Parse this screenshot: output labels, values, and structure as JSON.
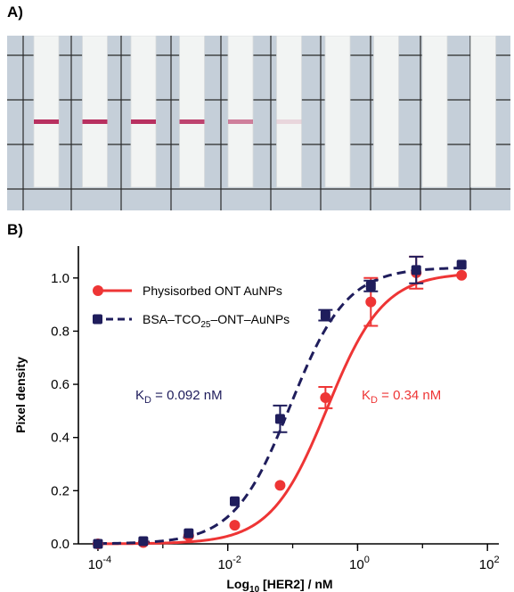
{
  "panel_a": {
    "label": "A)",
    "strip_count": 10,
    "band_intensity": [
      1.0,
      1.0,
      1.0,
      0.9,
      0.6,
      0.15,
      0,
      0,
      0,
      0
    ],
    "colors": {
      "background": "#c5cfd9",
      "strip": "#f2f4f3",
      "band": "#b83060",
      "grid": "#2a2a2a"
    }
  },
  "panel_b_label": "B)",
  "chart_data": {
    "type": "scatter",
    "xlabel_prefix": "Log",
    "xlabel_sub": "10",
    "xlabel_suffix": " [HER2] / nM",
    "ylabel": "Pixel density",
    "x_scale": "log",
    "xlim": [
      5e-05,
      150
    ],
    "ylim": [
      0,
      1.12
    ],
    "x_ticks": [
      {
        "value": 0.0001,
        "base": "10",
        "exp": "-4"
      },
      {
        "value": 0.01,
        "base": "10",
        "exp": "-2"
      },
      {
        "value": 1,
        "base": "10",
        "exp": "0"
      },
      {
        "value": 100,
        "base": "10",
        "exp": "2"
      }
    ],
    "y_ticks": [
      "0.0",
      "0.2",
      "0.4",
      "0.6",
      "0.8",
      "1.0"
    ],
    "y_tick_values": [
      0.0,
      0.2,
      0.4,
      0.6,
      0.8,
      1.0
    ],
    "grid": false,
    "legend_position": "top-left",
    "series": [
      {
        "name": "Physisorbed ONT AuNPs",
        "color": "#ee3535",
        "line_style": "solid",
        "marker": "circle",
        "kd": 0.34,
        "kd_label": {
          "prefix": "K",
          "sub": "D",
          "suffix": " = 0.34 nM"
        },
        "points": [
          {
            "x": 0.0001,
            "y": 0.0,
            "err": 0.0
          },
          {
            "x": 0.0005,
            "y": 0.005,
            "err": 0.0
          },
          {
            "x": 0.0025,
            "y": 0.03,
            "err": 0.0
          },
          {
            "x": 0.0128,
            "y": 0.07,
            "err": 0.0
          },
          {
            "x": 0.064,
            "y": 0.22,
            "err": 0.0
          },
          {
            "x": 0.32,
            "y": 0.55,
            "err": 0.04
          },
          {
            "x": 1.6,
            "y": 0.91,
            "err": 0.09
          },
          {
            "x": 8.0,
            "y": 1.02,
            "err": 0.06
          },
          {
            "x": 40.0,
            "y": 1.01,
            "err": 0.0
          }
        ],
        "fit_top": 1.02
      },
      {
        "name": "BSA–TCO25–ONT–AuNPs",
        "name_parts": {
          "pre": "BSA–TCO",
          "sub": "25",
          "post": "–ONT–AuNPs"
        },
        "color": "#1f1d5c",
        "line_style": "dashed",
        "marker": "square",
        "kd": 0.092,
        "kd_label": {
          "prefix": "K",
          "sub": "D",
          "suffix": " = 0.092 nM"
        },
        "points": [
          {
            "x": 0.0001,
            "y": 0.0,
            "err": 0.0
          },
          {
            "x": 0.0005,
            "y": 0.01,
            "err": 0.0
          },
          {
            "x": 0.0025,
            "y": 0.04,
            "err": 0.0
          },
          {
            "x": 0.0128,
            "y": 0.16,
            "err": 0.0
          },
          {
            "x": 0.064,
            "y": 0.47,
            "err": 0.05
          },
          {
            "x": 0.32,
            "y": 0.86,
            "err": 0.02
          },
          {
            "x": 1.6,
            "y": 0.97,
            "err": 0.02
          },
          {
            "x": 8.0,
            "y": 1.03,
            "err": 0.05
          },
          {
            "x": 40.0,
            "y": 1.05,
            "err": 0.0
          }
        ],
        "fit_top": 1.04
      }
    ]
  }
}
